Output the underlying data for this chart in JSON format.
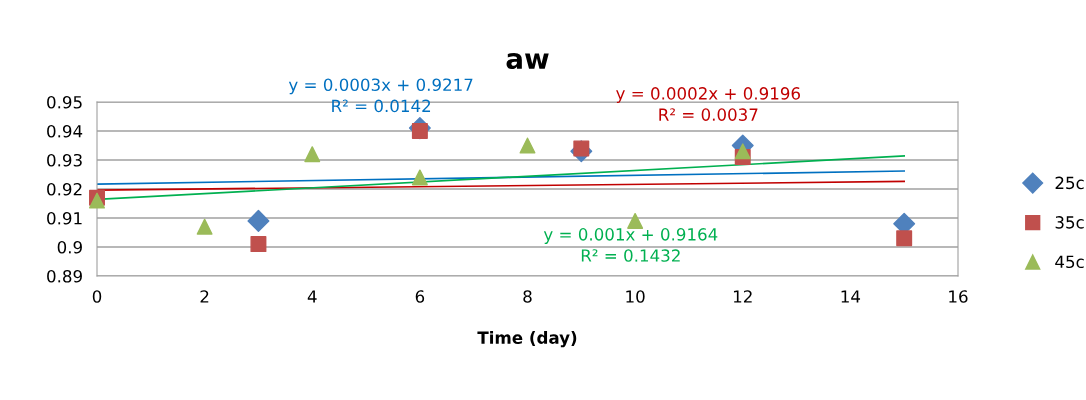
{
  "chart_data": {
    "type": "scatter",
    "title": "aw",
    "xlabel": "Time (day)",
    "xlim": [
      0,
      16
    ],
    "xticks": [
      0,
      2,
      4,
      6,
      8,
      10,
      12,
      14,
      16
    ],
    "ylim": [
      0.89,
      0.95
    ],
    "yticks": [
      0.89,
      0.9,
      0.91,
      0.92,
      0.93,
      0.94,
      0.95
    ],
    "grid": "y",
    "legend": "right",
    "series": [
      {
        "name": "25c",
        "color": "#4f81bd",
        "marker": "diamond",
        "x": [
          3,
          6,
          9,
          12,
          15
        ],
        "values": [
          0.909,
          0.941,
          0.933,
          0.935,
          0.908
        ]
      },
      {
        "name": "35c",
        "color": "#c0504d",
        "marker": "square",
        "x": [
          0,
          3,
          6,
          9,
          12,
          15
        ],
        "values": [
          0.917,
          0.901,
          0.94,
          0.934,
          0.931,
          0.903
        ]
      },
      {
        "name": "45c",
        "color": "#9bbb59",
        "marker": "triangle",
        "x": [
          0,
          2,
          4,
          6,
          8,
          10,
          12
        ],
        "values": [
          0.916,
          0.907,
          0.932,
          0.924,
          0.935,
          0.909,
          0.933
        ]
      },
      {
        "type": "line",
        "color": "#0070c0",
        "marker": "none",
        "x": [
          0,
          15
        ],
        "values": [
          0.9217,
          0.9262
        ]
      },
      {
        "type": "line",
        "color": "#c00000",
        "marker": "none",
        "x": [
          0,
          15
        ],
        "values": [
          0.9196,
          0.9226
        ]
      },
      {
        "type": "line",
        "color": "#00b050",
        "marker": "none",
        "x": [
          0,
          15
        ],
        "values": [
          0.9164,
          0.9314
        ]
      }
    ],
    "annotations": [
      "y = 0.0003x + 0.9217\nR² = 0.0142",
      "y = 0.0002x + 0.9196\nR² = 0.0037",
      "y = 0.001x + 0.9164\nR² = 0.1432"
    ]
  }
}
